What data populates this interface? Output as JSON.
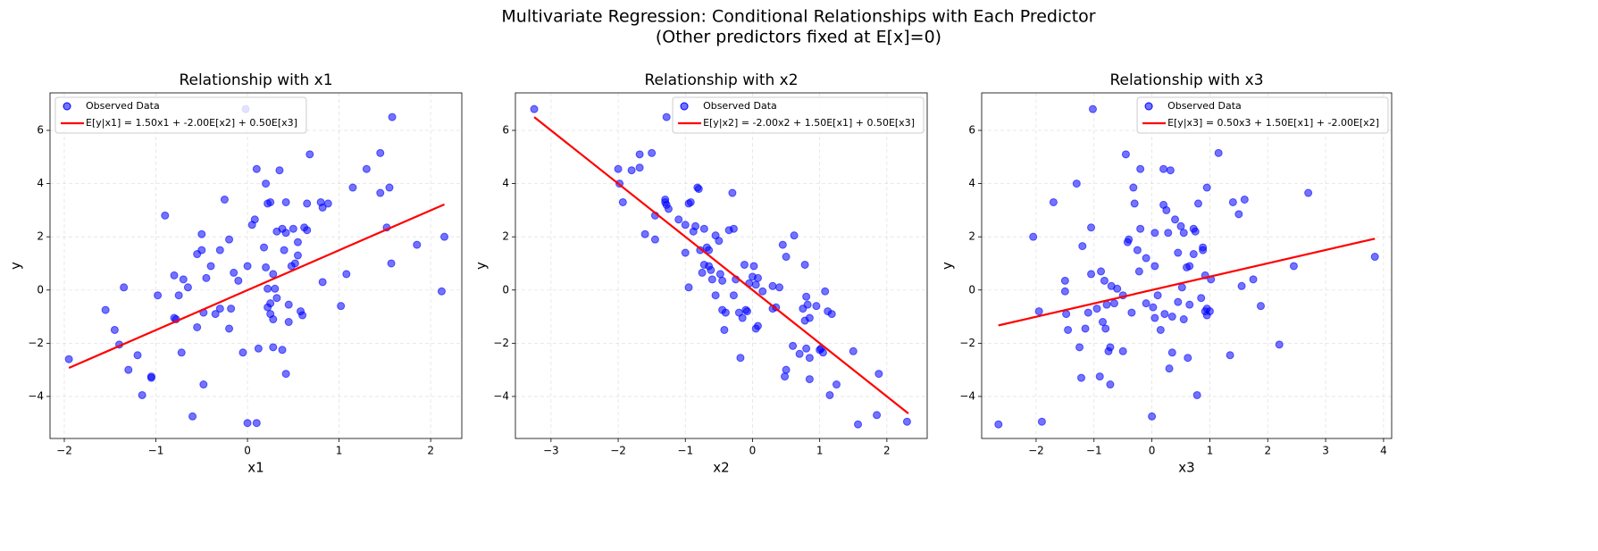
{
  "title": "Multivariate Regression: Conditional Relationships with Each Predictor",
  "subtitle": "(Other predictors fixed at E[x]=0)",
  "chart_data": [
    {
      "type": "scatter",
      "title": "Relationship with x1",
      "x_label": "x1",
      "y_label": "y",
      "xlim": [
        -2.156,
        2.34
      ],
      "ylim": [
        -5.58,
        7.41
      ],
      "xticks": [
        {
          "value": -2,
          "label": "−2"
        },
        {
          "value": -1,
          "label": "−1"
        },
        0,
        1,
        2
      ],
      "yticks": [
        {
          "value": -4,
          "label": "−4"
        },
        {
          "value": -2,
          "label": "−2"
        },
        0,
        2,
        4,
        6
      ],
      "grid": true,
      "legend": "upper left",
      "series": [
        {
          "name": "Observed Data",
          "color": "blue",
          "x": [
            -1.95,
            -1.55,
            -1.45,
            -1.4,
            -1.35,
            -1.3,
            -1.2,
            -1.15,
            -1.05,
            -1.05,
            -0.98,
            -0.9,
            -0.8,
            -0.78,
            -0.8,
            -0.75,
            -0.72,
            -0.7,
            -0.65,
            -0.6,
            -0.55,
            -0.55,
            -0.5,
            -0.5,
            -0.48,
            -0.48,
            -0.45,
            -0.4,
            -0.35,
            -0.3,
            -0.3,
            -0.25,
            -0.2,
            -0.18,
            -0.2,
            -0.15,
            -0.1,
            -0.05,
            -0.02,
            0,
            0,
            0.05,
            0.08,
            0.1,
            0.1,
            0.12,
            0.18,
            0.2,
            0.2,
            0.22,
            0.22,
            0.22,
            0.25,
            0.25,
            0.25,
            0.28,
            0.28,
            0.28,
            0.3,
            0.32,
            0.32,
            0.35,
            0.38,
            0.38,
            0.4,
            0.42,
            0.42,
            0.42,
            0.45,
            0.45,
            0.48,
            0.5,
            0.52,
            0.55,
            0.55,
            0.58,
            0.6,
            0.62,
            0.65,
            0.65,
            0.68,
            0.8,
            0.82,
            0.82,
            0.88,
            1.02,
            1.08,
            1.15,
            1.3,
            1.45,
            1.45,
            1.52,
            1.55,
            1.57,
            1.58,
            1.85,
            2.12,
            2.15
          ],
          "values": [
            -2.6,
            -0.75,
            -1.5,
            -2.05,
            0.1,
            -3.0,
            -2.45,
            -3.95,
            -3.25,
            -3.3,
            -0.2,
            2.8,
            -1.05,
            -1.1,
            0.55,
            -0.2,
            -2.35,
            0.4,
            0.1,
            -4.75,
            1.35,
            -1.4,
            1.5,
            2.1,
            -0.85,
            -3.55,
            0.45,
            0.9,
            -0.9,
            -0.7,
            1.5,
            3.4,
            1.9,
            -0.7,
            -1.45,
            0.65,
            0.35,
            -2.35,
            6.8,
            0.9,
            -5.0,
            2.45,
            2.65,
            4.55,
            -5.0,
            -2.2,
            1.6,
            4.0,
            0.85,
            -0.65,
            0.05,
            3.25,
            3.3,
            -0.5,
            -0.9,
            0.6,
            -1.1,
            -2.15,
            0.05,
            -0.3,
            2.2,
            4.5,
            -2.25,
            2.3,
            1.5,
            -3.15,
            3.3,
            2.15,
            -1.2,
            -0.55,
            0.9,
            2.3,
            1.0,
            1.3,
            1.8,
            -0.8,
            -0.95,
            2.35,
            2.25,
            3.25,
            5.1,
            3.3,
            0.3,
            3.1,
            3.25,
            -0.6,
            0.6,
            3.85,
            4.55,
            5.15,
            3.65,
            2.35,
            3.85,
            1.0,
            6.5,
            1.7,
            -0.05,
            2.0
          ]
        },
        {
          "name": "E[y|x1] = 1.50x1 + -2.00E[x2] + 0.50E[x3]",
          "color": "red",
          "type": "line",
          "x": [
            -1.95,
            2.15
          ],
          "values": [
            -2.93,
            3.22
          ]
        }
      ]
    },
    {
      "type": "scatter",
      "title": "Relationship with x2",
      "x_label": "x2",
      "y_label": "y",
      "xlim": [
        -3.53,
        2.6
      ],
      "ylim": [
        -5.58,
        7.41
      ],
      "xticks": [
        {
          "value": -3,
          "label": "−3"
        },
        {
          "value": -2,
          "label": "−2"
        },
        {
          "value": -1,
          "label": "−1"
        },
        0,
        1,
        2
      ],
      "yticks": [
        {
          "value": -4,
          "label": "−4"
        },
        {
          "value": -2,
          "label": "−2"
        },
        0,
        2,
        4,
        6
      ],
      "grid": true,
      "legend": "upper right",
      "series": [
        {
          "name": "Observed Data",
          "color": "blue",
          "x": [
            -3.25,
            -2.0,
            -1.98,
            -1.93,
            -1.8,
            -1.68,
            -1.68,
            -1.5,
            -1.6,
            -1.45,
            -1.45,
            -1.3,
            -1.3,
            -1.28,
            -1.25,
            -1.28,
            -1.1,
            -1.0,
            -1.0,
            -0.95,
            -0.92,
            -0.95,
            -0.88,
            -0.85,
            -0.82,
            -0.8,
            -0.78,
            -0.75,
            -0.72,
            -0.72,
            -0.68,
            -0.65,
            -0.65,
            -0.62,
            -0.6,
            -0.55,
            -0.55,
            -0.5,
            -0.48,
            -0.45,
            -0.45,
            -0.42,
            -0.4,
            -0.35,
            -0.3,
            -0.28,
            -0.28,
            -0.25,
            -0.2,
            -0.18,
            -0.15,
            -0.12,
            -0.1,
            -0.08,
            -0.05,
            0,
            0.02,
            0.05,
            0.05,
            0.08,
            0.08,
            0.15,
            0.3,
            0.3,
            0.35,
            0.4,
            0.45,
            0.48,
            0.5,
            0.5,
            0.6,
            0.62,
            0.7,
            0.75,
            0.78,
            0.78,
            0.8,
            0.8,
            0.82,
            0.85,
            0.85,
            0.85,
            0.95,
            1.0,
            1.02,
            1.05,
            1.08,
            1.12,
            1.15,
            1.18,
            1.25,
            1.5,
            1.57,
            1.85,
            1.88,
            2.3
          ],
          "values": [
            6.8,
            4.55,
            4.0,
            3.3,
            4.5,
            4.6,
            5.1,
            5.15,
            2.1,
            1.9,
            2.8,
            3.4,
            3.3,
            3.2,
            3.05,
            6.5,
            2.65,
            1.4,
            2.45,
            3.25,
            3.3,
            0.1,
            2.2,
            2.4,
            3.85,
            3.8,
            1.5,
            0.65,
            2.3,
            0.95,
            1.6,
            0.9,
            1.5,
            0.75,
            0.4,
            -0.2,
            2.05,
            1.85,
            0.6,
            0.35,
            -0.75,
            -1.5,
            -0.85,
            2.25,
            3.65,
            2.3,
            -0.2,
            0.4,
            -0.85,
            -2.55,
            -1.05,
            0.95,
            -0.75,
            -0.8,
            0.25,
            0.5,
            0.9,
            -1.45,
            0.2,
            0.45,
            -1.35,
            -0.05,
            0.15,
            -0.7,
            -0.65,
            0.1,
            1.7,
            -3.25,
            1.25,
            -3.0,
            -2.1,
            2.05,
            -2.4,
            -0.7,
            -1.15,
            0.95,
            -0.25,
            -2.2,
            -0.55,
            -2.55,
            -1.05,
            -3.35,
            -0.6,
            -2.25,
            -2.2,
            -2.35,
            -0.05,
            -0.8,
            -3.95,
            -0.9,
            -3.55,
            -2.3,
            -5.05,
            -4.7,
            -3.15,
            -4.95
          ]
        },
        {
          "name": "E[y|x2] = -2.00x2 + 1.50E[x1] + 0.50E[x3]",
          "color": "red",
          "type": "line",
          "x": [
            -3.25,
            2.32
          ],
          "values": [
            6.5,
            -4.64
          ]
        }
      ]
    },
    {
      "type": "scatter",
      "title": "Relationship with x3",
      "x_label": "x3",
      "y_label": "y",
      "xlim": [
        -2.94,
        4.14
      ],
      "ylim": [
        -5.58,
        7.41
      ],
      "xticks": [
        {
          "value": -2,
          "label": "−2"
        },
        {
          "value": -1,
          "label": "−1"
        },
        0,
        1,
        2,
        3,
        4
      ],
      "yticks": [
        {
          "value": -4,
          "label": "−4"
        },
        {
          "value": -2,
          "label": "−2"
        },
        0,
        2,
        4,
        6
      ],
      "grid": true,
      "legend": "upper right",
      "series": [
        {
          "name": "Observed Data",
          "color": "blue",
          "x": [
            -2.65,
            -2.05,
            -1.95,
            -1.9,
            -1.7,
            -1.5,
            -1.5,
            -1.48,
            -1.45,
            -1.3,
            -1.25,
            -1.22,
            -1.2,
            -1.15,
            -1.1,
            -1.05,
            -1.05,
            -1.02,
            -0.95,
            -0.9,
            -0.88,
            -0.85,
            -0.82,
            -0.8,
            -0.78,
            -0.75,
            -0.72,
            -0.72,
            -0.7,
            -0.65,
            -0.6,
            -0.5,
            -0.5,
            -0.45,
            -0.42,
            -0.4,
            -0.35,
            -0.32,
            -0.3,
            -0.25,
            -0.22,
            -0.2,
            -0.2,
            -0.1,
            -0.1,
            0,
            0.02,
            0.05,
            0.05,
            0.05,
            0.1,
            0.15,
            0.2,
            0.2,
            0.22,
            0.25,
            0.28,
            0.3,
            0.32,
            0.35,
            0.35,
            0.4,
            0.45,
            0.45,
            0.5,
            0.52,
            0.55,
            0.55,
            0.6,
            0.62,
            0.65,
            0.65,
            0.72,
            0.72,
            0.75,
            0.78,
            0.8,
            0.85,
            0.88,
            0.88,
            0.92,
            0.92,
            0.95,
            0.95,
            0.95,
            1.0,
            1.02,
            1.15,
            1.35,
            1.4,
            1.5,
            1.55,
            1.6,
            1.75,
            1.88,
            2.2,
            2.45,
            2.7,
            3.85
          ],
          "values": [
            -5.05,
            2.0,
            -0.8,
            -4.95,
            3.3,
            0.35,
            -0.05,
            -0.9,
            -1.5,
            4.0,
            -2.15,
            -3.3,
            1.65,
            -1.45,
            -0.85,
            2.35,
            0.6,
            6.8,
            -0.7,
            -3.25,
            0.7,
            -1.2,
            0.35,
            -1.45,
            -0.55,
            -2.3,
            -2.15,
            -3.55,
            0.15,
            -0.5,
            0.05,
            -2.3,
            -0.2,
            5.1,
            1.8,
            1.9,
            -0.85,
            3.85,
            3.25,
            1.5,
            0.7,
            4.55,
            2.3,
            1.2,
            -0.5,
            -4.75,
            -0.65,
            2.15,
            0.9,
            -1.05,
            -0.2,
            -1.5,
            3.2,
            4.55,
            -0.9,
            3.0,
            2.15,
            -2.95,
            4.5,
            -2.35,
            -1.0,
            2.65,
            1.4,
            -0.45,
            2.4,
            0.1,
            2.15,
            -1.1,
            0.85,
            -2.55,
            0.9,
            -0.55,
            2.3,
            1.35,
            2.2,
            -3.95,
            3.25,
            -0.3,
            1.6,
            1.5,
            -0.8,
            0.55,
            3.85,
            -0.95,
            -0.7,
            -0.8,
            0.4,
            5.15,
            -2.45,
            3.3,
            2.85,
            0.15,
            3.4,
            0.4,
            -0.6,
            -2.05,
            0.9,
            3.65,
            1.25
          ]
        },
        {
          "name": "E[y|x3] = 0.50x3 + 1.50E[x1] + -2.00E[x2]",
          "color": "red",
          "type": "line",
          "x": [
            -2.65,
            3.85
          ],
          "values": [
            -1.33,
            1.93
          ]
        }
      ]
    }
  ]
}
